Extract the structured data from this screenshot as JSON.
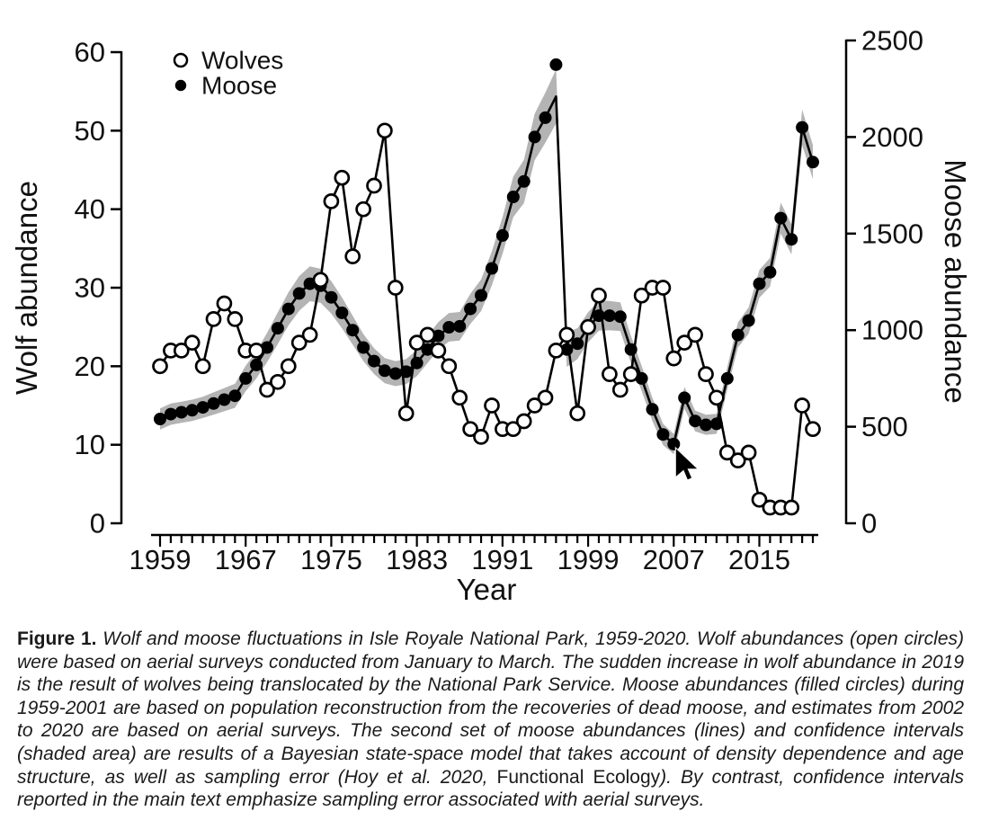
{
  "figure": {
    "legend": {
      "wolves_label": "Wolves",
      "moose_label": "Moose"
    },
    "axes": {
      "left": {
        "title": "Wolf abundance",
        "ticks": [
          0,
          10,
          20,
          30,
          40,
          50,
          60
        ],
        "range": [
          0,
          60
        ]
      },
      "right": {
        "title": "Moose abundance",
        "ticks": [
          0,
          500,
          1000,
          1500,
          2000,
          2500
        ],
        "range": [
          0,
          2500
        ]
      },
      "x": {
        "title": "Year",
        "labeled_ticks": [
          1959,
          1967,
          1975,
          1983,
          1991,
          1999,
          2007,
          2015
        ],
        "range": [
          1959,
          2020
        ]
      }
    },
    "colors": {
      "line": "#000000",
      "confidence_band": "#b4b4b4",
      "background": "#ffffff",
      "open_marker_fill": "#ffffff"
    },
    "cursor": {
      "pointing_at_year": 2007,
      "pointing_at_series": "Moose"
    }
  },
  "chart_data": {
    "type": "line",
    "title": "",
    "xlabel": "Year",
    "ylabel_left": "Wolf abundance",
    "ylabel_right": "Moose abundance",
    "ylim_left": [
      0,
      60
    ],
    "ylim_right": [
      0,
      2500
    ],
    "grid": false,
    "legend_position": "top-left",
    "x": [
      1959,
      1960,
      1961,
      1962,
      1963,
      1964,
      1965,
      1966,
      1967,
      1968,
      1969,
      1970,
      1971,
      1972,
      1973,
      1974,
      1975,
      1976,
      1977,
      1978,
      1979,
      1980,
      1981,
      1982,
      1983,
      1984,
      1985,
      1986,
      1987,
      1988,
      1989,
      1990,
      1991,
      1992,
      1993,
      1994,
      1995,
      1996,
      1997,
      1998,
      1999,
      2000,
      2001,
      2002,
      2003,
      2004,
      2005,
      2006,
      2007,
      2008,
      2009,
      2010,
      2011,
      2012,
      2013,
      2014,
      2015,
      2016,
      2017,
      2018,
      2019,
      2020
    ],
    "series": [
      {
        "name": "Wolves",
        "axis": "left",
        "marker": "open-circle",
        "values": [
          20,
          22,
          22,
          23,
          20,
          26,
          28,
          26,
          22,
          22,
          17,
          18,
          20,
          23,
          24,
          31,
          41,
          44,
          34,
          40,
          43,
          50,
          30,
          14,
          23,
          24,
          22,
          20,
          16,
          12,
          11,
          15,
          12,
          12,
          13,
          15,
          16,
          22,
          24,
          14,
          25,
          29,
          19,
          17,
          19,
          29,
          30,
          30,
          21,
          23,
          24,
          19,
          16,
          9,
          8,
          9,
          3,
          2,
          2,
          2,
          15,
          12
        ]
      },
      {
        "name": "Moose",
        "axis": "right",
        "marker": "filled-circle",
        "values": [
          540,
          565,
          575,
          585,
          600,
          620,
          640,
          660,
          750,
          820,
          910,
          1010,
          1110,
          1190,
          1240,
          1230,
          1170,
          1090,
          1000,
          910,
          840,
          790,
          775,
          785,
          830,
          900,
          970,
          1015,
          1020,
          1110,
          1180,
          1320,
          1490,
          1690,
          1770,
          2000,
          2100,
          2375,
          900,
          930,
          1015,
          1075,
          1075,
          1070,
          900,
          750,
          590,
          460,
          410,
          650,
          530,
          510,
          515,
          750,
          975,
          1050,
          1240,
          1300,
          1580,
          1470,
          2050,
          1870
        ]
      },
      {
        "name": "Moose Bayesian state-space model",
        "axis": "right",
        "marker": "none",
        "values": [
          540,
          565,
          575,
          585,
          600,
          620,
          640,
          660,
          750,
          820,
          910,
          1010,
          1110,
          1190,
          1240,
          1230,
          1170,
          1090,
          1000,
          910,
          840,
          790,
          775,
          785,
          830,
          900,
          970,
          1015,
          1020,
          1110,
          1180,
          1320,
          1490,
          1690,
          1770,
          2000,
          2100,
          2210,
          900,
          930,
          1015,
          1075,
          1075,
          1070,
          900,
          750,
          590,
          460,
          410,
          650,
          530,
          510,
          515,
          750,
          975,
          1050,
          1240,
          1300,
          1580,
          1470,
          2050,
          1870
        ]
      }
    ],
    "confidence_half_width": [
      55,
      55,
      55,
      55,
      55,
      58,
      60,
      62,
      66,
      70,
      76,
      82,
      86,
      90,
      90,
      88,
      84,
      80,
      75,
      70,
      67,
      65,
      65,
      65,
      68,
      70,
      72,
      74,
      74,
      78,
      82,
      88,
      95,
      105,
      112,
      120,
      130,
      140,
      90,
      80,
      78,
      78,
      76,
      74,
      70,
      65,
      60,
      55,
      52,
      56,
      54,
      52,
      52,
      58,
      65,
      68,
      72,
      74,
      80,
      78,
      92,
      88
    ]
  },
  "caption": {
    "label": "Figure 1.",
    "body_before_journal": " Wolf and moose fluctuations in Isle Royale National Park, 1959-2020. Wolf abundances (open circles) were based on aerial surveys conducted from January to March. The sudden increase in wolf abundance in 2019 is the result of wolves being translocated by the National Park Service. Moose abundances (filled circles) during 1959-2001 are based on population reconstruction from the recoveries of dead moose, and estimates from 2002 to 2020 are based on aerial surveys. The second set of moose abundances (lines) and confidence intervals (shaded area) are results of a Bayesian state-space model that takes account of density dependence and age structure, as well as sampling error (Hoy et al. 2020, ",
    "journal": "Functional Ecology",
    "body_after_journal": "). By contrast, confidence intervals reported in the main text emphasize sampling error associated with aerial surveys."
  }
}
